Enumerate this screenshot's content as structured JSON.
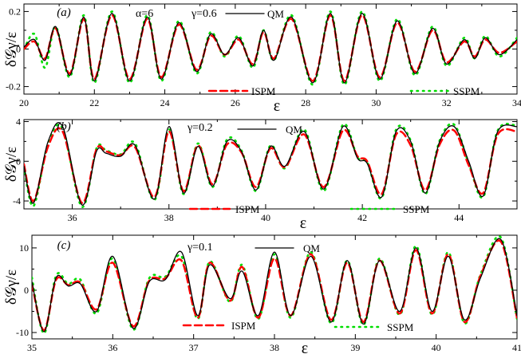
{
  "chart_data": [
    {
      "type": "line",
      "panel_label": "(a)",
      "annotations": [
        "α=6",
        "γ=0.6"
      ],
      "xlabel": "ε",
      "ylabel": "δ𝒢γ/ε",
      "xlim": [
        20,
        34
      ],
      "ylim": [
        -0.24,
        0.24
      ],
      "xticks": [
        20,
        22,
        24,
        26,
        28,
        30,
        32,
        34
      ],
      "xtick_labels": [
        "20",
        "22",
        "24",
        "26",
        "28",
        "30",
        "32",
        "34"
      ],
      "yticks": [
        -0.2,
        0,
        0.2
      ],
      "ytick_labels": [
        "-0.2",
        "0",
        "0.2"
      ],
      "series": [
        {
          "name": "QM",
          "style": "solid",
          "color": "#000000",
          "x": [
            20,
            20.3,
            20.6,
            20.9,
            21.3,
            21.7,
            22.0,
            22.5,
            23.0,
            23.5,
            23.9,
            24.4,
            24.9,
            25.3,
            25.7,
            26.1,
            26.5,
            26.8,
            27.1,
            27.6,
            28.2,
            28.7,
            29.1,
            29.6,
            30.1,
            30.6,
            31.1,
            31.6,
            32.0,
            32.5,
            32.8,
            33.1,
            33.5,
            34
          ],
          "y": [
            0.01,
            0.05,
            -0.06,
            0.12,
            -0.14,
            0.17,
            -0.17,
            0.19,
            -0.17,
            0.17,
            -0.16,
            0.14,
            -0.12,
            0.08,
            -0.03,
            0.06,
            -0.09,
            0.1,
            -0.06,
            0.17,
            -0.18,
            0.19,
            -0.18,
            0.19,
            -0.16,
            0.15,
            -0.13,
            0.11,
            -0.08,
            0.05,
            -0.05,
            0.06,
            -0.03,
            0.05
          ]
        },
        {
          "name": "ISPM",
          "style": "dashed",
          "color": "#ff0000",
          "x": [
            20,
            20.3,
            20.6,
            20.9,
            21.3,
            21.7,
            22.0,
            22.5,
            23.0,
            23.5,
            23.9,
            24.4,
            24.9,
            25.3,
            25.7,
            26.1,
            26.5,
            26.8,
            27.1,
            27.6,
            28.2,
            28.7,
            29.1,
            29.6,
            30.1,
            30.6,
            31.1,
            31.6,
            32.0,
            32.5,
            32.8,
            33.1,
            33.5,
            34
          ],
          "y": [
            0.0,
            0.04,
            -0.05,
            0.11,
            -0.13,
            0.16,
            -0.16,
            0.18,
            -0.16,
            0.16,
            -0.15,
            0.13,
            -0.11,
            0.07,
            -0.03,
            0.05,
            -0.08,
            0.09,
            -0.05,
            0.16,
            -0.17,
            0.18,
            -0.17,
            0.18,
            -0.15,
            0.14,
            -0.12,
            0.1,
            -0.07,
            0.04,
            -0.04,
            0.05,
            -0.02,
            0.04
          ]
        },
        {
          "name": "SSPM",
          "style": "dotted",
          "color": "#00dd00",
          "x": [
            20,
            20.3,
            20.6,
            20.9,
            21.3,
            21.7,
            22.0,
            22.5,
            23.0,
            23.5,
            23.9,
            24.4,
            24.9,
            25.3,
            25.7,
            26.1,
            26.5,
            26.8,
            27.1,
            27.6,
            28.2,
            28.7,
            29.1,
            29.6,
            30.1,
            30.6,
            31.1,
            31.6,
            32.0,
            32.5,
            32.8,
            33.1,
            33.5,
            34
          ],
          "y": [
            0.0,
            0.08,
            -0.1,
            0.12,
            -0.15,
            0.18,
            -0.18,
            0.2,
            -0.18,
            0.18,
            -0.17,
            0.15,
            -0.13,
            0.09,
            -0.04,
            0.07,
            -0.1,
            0.1,
            -0.06,
            0.18,
            -0.19,
            0.2,
            -0.19,
            0.2,
            -0.17,
            0.16,
            -0.14,
            0.12,
            -0.09,
            0.06,
            -0.05,
            0.07,
            -0.04,
            0.06
          ]
        }
      ],
      "legend": [
        {
          "label": "QM"
        },
        {
          "label": "ISPM"
        },
        {
          "label": "SSPM"
        }
      ]
    },
    {
      "type": "line",
      "panel_label": "(b)",
      "annotations": [
        "γ=0.2"
      ],
      "xlabel": "ε",
      "ylabel": "δ𝒢γ/ε",
      "xlim": [
        35,
        45.2
      ],
      "ylim": [
        -4.8,
        4.2
      ],
      "xticks": [
        36,
        38,
        40,
        42,
        44
      ],
      "xtick_labels": [
        "36",
        "38",
        "40",
        "42",
        "44"
      ],
      "yticks": [
        -4,
        0,
        4
      ],
      "ytick_labels": [
        "-4",
        "0",
        "4"
      ],
      "series": [
        {
          "name": "QM",
          "style": "solid",
          "color": "#000000",
          "x": [
            35,
            35.2,
            35.5,
            35.8,
            36.2,
            36.5,
            36.7,
            37.0,
            37.3,
            37.7,
            38.0,
            38.3,
            38.6,
            38.9,
            39.2,
            39.5,
            39.8,
            40.1,
            40.4,
            40.8,
            41.2,
            41.6,
            41.9,
            42.1,
            42.4,
            42.7,
            43.0,
            43.3,
            43.6,
            43.9,
            44.2,
            44.5,
            44.8,
            45.2
          ],
          "y": [
            -0.5,
            -4.2,
            2.0,
            3.5,
            -4.4,
            1.0,
            0.8,
            0.5,
            1.6,
            -3.8,
            3.5,
            -3.2,
            1.5,
            -2.5,
            2.0,
            1.0,
            -2.9,
            1.5,
            -0.5,
            3.0,
            -2.8,
            3.5,
            0.3,
            -0.2,
            -3.6,
            3.0,
            2.0,
            -3.2,
            2.0,
            3.5,
            0.0,
            -3.5,
            3.0,
            3.5
          ]
        },
        {
          "name": "ISPM",
          "style": "dashed",
          "color": "#ff0000",
          "x": [
            35,
            35.2,
            35.5,
            35.8,
            36.2,
            36.5,
            36.7,
            37.0,
            37.3,
            37.7,
            38.0,
            38.3,
            38.6,
            38.9,
            39.2,
            39.5,
            39.8,
            40.1,
            40.4,
            40.8,
            41.2,
            41.6,
            41.9,
            42.1,
            42.4,
            42.7,
            43.0,
            43.3,
            43.6,
            43.9,
            44.2,
            44.5,
            44.8,
            45.2
          ],
          "y": [
            -0.3,
            -4.0,
            1.5,
            3.0,
            -4.2,
            1.2,
            1.0,
            0.6,
            1.4,
            -3.6,
            3.0,
            -3.0,
            1.6,
            -2.3,
            1.7,
            0.9,
            -2.6,
            1.3,
            -0.6,
            2.7,
            -2.6,
            3.1,
            0.5,
            0.0,
            -3.3,
            2.7,
            1.6,
            -2.9,
            1.7,
            3.1,
            -0.4,
            -3.2,
            2.7,
            3.0
          ]
        },
        {
          "name": "SSPM",
          "style": "dotted",
          "color": "#00dd00",
          "x": [
            35,
            35.2,
            35.5,
            35.8,
            36.2,
            36.5,
            36.7,
            37.0,
            37.3,
            37.7,
            38.0,
            38.3,
            38.6,
            38.9,
            39.2,
            39.5,
            39.8,
            40.1,
            40.4,
            40.8,
            41.2,
            41.6,
            41.9,
            42.1,
            42.4,
            42.7,
            43.0,
            43.3,
            43.6,
            43.9,
            44.2,
            44.5,
            44.8,
            45.2
          ],
          "y": [
            -0.6,
            -4.5,
            1.8,
            3.3,
            -4.6,
            1.3,
            1.1,
            0.7,
            1.8,
            -3.9,
            3.2,
            -3.3,
            1.8,
            -2.6,
            2.2,
            1.1,
            -3.0,
            1.6,
            -0.7,
            3.2,
            -3.0,
            3.7,
            0.4,
            -0.1,
            -3.7,
            3.2,
            2.1,
            -3.3,
            2.1,
            3.7,
            -0.2,
            -3.6,
            3.1,
            3.6
          ]
        }
      ],
      "legend": [
        {
          "label": "QM"
        },
        {
          "label": "ISPM"
        },
        {
          "label": "SSPM"
        }
      ]
    },
    {
      "type": "line",
      "panel_label": "(c)",
      "annotations": [
        "γ=0.1"
      ],
      "xlabel": "ε",
      "ylabel": "δ𝒢γ/ε",
      "xlim": [
        35,
        41
      ],
      "ylim": [
        -11.5,
        13
      ],
      "xticks": [
        35,
        36,
        37,
        38,
        39,
        40,
        41
      ],
      "xtick_labels": [
        "35",
        "36",
        "37",
        "38",
        "39",
        "40",
        "41"
      ],
      "yticks": [
        -10,
        0,
        10
      ],
      "ytick_labels": [
        "-10",
        "0",
        "10"
      ],
      "series": [
        {
          "name": "QM",
          "style": "solid",
          "color": "#000000",
          "x": [
            35,
            35.15,
            35.3,
            35.45,
            35.6,
            35.8,
            36.0,
            36.25,
            36.45,
            36.65,
            36.85,
            37.05,
            37.2,
            37.45,
            37.6,
            37.8,
            38.0,
            38.2,
            38.45,
            38.7,
            38.9,
            39.1,
            39.3,
            39.55,
            39.75,
            39.95,
            40.15,
            40.35,
            40.55,
            40.8,
            41
          ],
          "y": [
            2.0,
            -9.8,
            3.0,
            1.0,
            1.5,
            -5.0,
            8.0,
            -9.0,
            2.0,
            2.5,
            9.0,
            -6.0,
            6.0,
            -2.0,
            4.5,
            -6.0,
            9.0,
            -6.0,
            8.0,
            -7.5,
            7.0,
            -8.0,
            7.0,
            -5.0,
            10.0,
            -5.0,
            8.0,
            -7.0,
            3.0,
            12.0,
            -6.0
          ]
        },
        {
          "name": "ISPM",
          "style": "dashed",
          "color": "#ff0000",
          "x": [
            35,
            35.15,
            35.3,
            35.45,
            35.6,
            35.8,
            36.0,
            36.25,
            36.45,
            36.65,
            36.85,
            37.05,
            37.2,
            37.45,
            37.6,
            37.8,
            38.0,
            38.2,
            38.45,
            38.7,
            38.9,
            39.1,
            39.3,
            39.55,
            39.75,
            39.95,
            40.15,
            40.35,
            40.55,
            40.8,
            41
          ],
          "y": [
            1.5,
            -9.5,
            2.5,
            1.2,
            1.8,
            -4.5,
            6.5,
            -8.5,
            2.2,
            2.8,
            7.0,
            -6.5,
            6.5,
            -2.5,
            5.5,
            -6.5,
            7.5,
            -6.0,
            8.5,
            -7.0,
            6.5,
            -7.5,
            7.0,
            -5.5,
            9.5,
            -5.5,
            8.5,
            -7.5,
            3.5,
            11.5,
            -6.5
          ]
        },
        {
          "name": "SSPM",
          "style": "dotted",
          "color": "#00dd00",
          "x": [
            35,
            35.15,
            35.3,
            35.45,
            35.6,
            35.8,
            36.0,
            36.25,
            36.45,
            36.65,
            36.85,
            37.05,
            37.2,
            37.45,
            37.6,
            37.8,
            38.0,
            38.2,
            38.45,
            38.7,
            38.9,
            39.1,
            39.3,
            39.55,
            39.75,
            39.95,
            40.15,
            40.35,
            40.55,
            40.8,
            41
          ],
          "y": [
            3.0,
            -10.2,
            3.5,
            1.5,
            2.5,
            -5.5,
            7.5,
            -9.3,
            2.8,
            3.2,
            8.0,
            -6.8,
            6.8,
            -2.8,
            6.0,
            -6.8,
            8.5,
            -6.5,
            9.0,
            -7.8,
            7.0,
            -8.2,
            7.5,
            -5.8,
            10.5,
            -5.8,
            9.0,
            -7.8,
            3.8,
            12.5,
            -6.8
          ]
        }
      ],
      "legend": [
        {
          "label": "QM"
        },
        {
          "label": "ISPM"
        },
        {
          "label": "SSPM"
        }
      ]
    }
  ]
}
